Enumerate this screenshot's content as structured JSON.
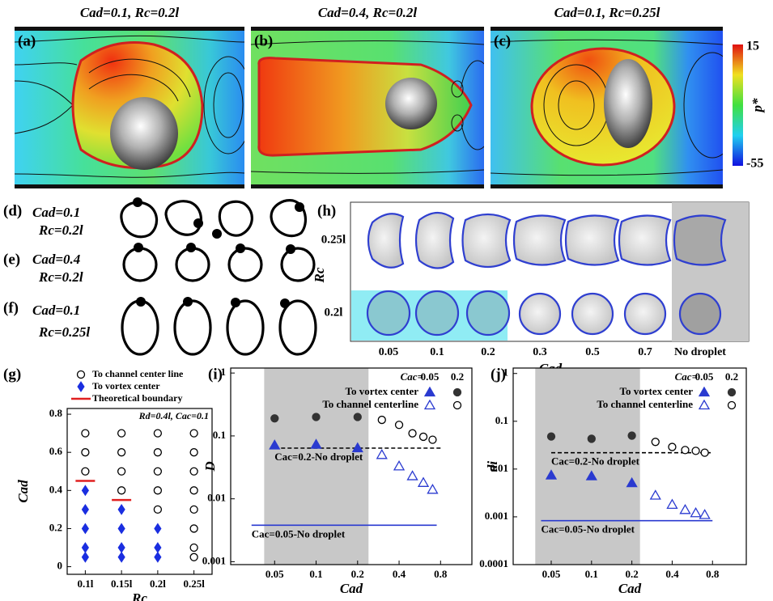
{
  "panels": {
    "a": {
      "tag": "(a)",
      "title": "Cad=0.1, Rc=0.2l"
    },
    "b": {
      "tag": "(b)",
      "title": "Cad=0.4, Rc=0.2l"
    },
    "c": {
      "tag": "(c)",
      "title": "Cad=0.1, Rc=0.25l"
    },
    "colorbar": {
      "max": 15,
      "min": -55,
      "label": "p*"
    },
    "d": {
      "tag": "(d)",
      "line1": "Cad=0.1",
      "line2": "Rc=0.2l"
    },
    "e": {
      "tag": "(e)",
      "line1": "Cad=0.4",
      "line2": "Rc=0.2l"
    },
    "f": {
      "tag": "(f)",
      "line1": "Cad=0.1",
      "line2": "Rc=0.25l"
    },
    "h": {
      "tag": "(h)",
      "y_label": "Rc",
      "rows": [
        "0.25l",
        "0.2l"
      ],
      "columns": [
        "0.05",
        "0.1",
        "0.2",
        "0.3",
        "0.5",
        "0.7",
        "No droplet"
      ],
      "x_label": "Cad"
    }
  },
  "chart_data": [
    {
      "type": "scatter",
      "panel_label": "(g)",
      "x_label": "Rc",
      "y_label": "Cad",
      "annotation": "Rd=0.4l, Cac=0.1",
      "categories": [
        "0.1l",
        "0.15l",
        "0.2l",
        "0.25l"
      ],
      "ylim": [
        -0.04,
        0.83
      ],
      "yticks": [
        0,
        0.2,
        0.4,
        0.6,
        0.8
      ],
      "legend": "top",
      "series": [
        {
          "name": "To channel center line",
          "marker": "circle",
          "filled": false,
          "color": "#000000",
          "x": [
            "0.1l",
            "0.1l",
            "0.1l",
            "0.15l",
            "0.15l",
            "0.15l",
            "0.15l",
            "0.2l",
            "0.2l",
            "0.2l",
            "0.2l",
            "0.2l",
            "0.25l",
            "0.25l",
            "0.25l",
            "0.25l",
            "0.25l",
            "0.25l",
            "0.25l",
            "0.25l"
          ],
          "values": [
            0.5,
            0.6,
            0.7,
            0.4,
            0.5,
            0.6,
            0.7,
            0.3,
            0.4,
            0.5,
            0.6,
            0.7,
            0.05,
            0.1,
            0.2,
            0.3,
            0.4,
            0.5,
            0.6,
            0.7
          ]
        },
        {
          "name": "To vortex center",
          "marker": "diamond",
          "filled": true,
          "color": "#1a2ee0",
          "x": [
            "0.1l",
            "0.1l",
            "0.1l",
            "0.1l",
            "0.1l",
            "0.15l",
            "0.15l",
            "0.15l",
            "0.15l",
            "0.2l",
            "0.2l",
            "0.2l"
          ],
          "values": [
            0.05,
            0.1,
            0.2,
            0.3,
            0.4,
            0.05,
            0.1,
            0.2,
            0.3,
            0.05,
            0.1,
            0.2
          ]
        },
        {
          "name": "Theoretical boundary",
          "marker": "hline",
          "filled": true,
          "color": "#e02020",
          "x": [
            "0.1l",
            "0.15l"
          ],
          "values": [
            0.45,
            0.35
          ]
        }
      ]
    },
    {
      "type": "scatter",
      "panel_label": "(i)",
      "x_label": "Cad",
      "y_label": "D",
      "xlog": true,
      "ylog": true,
      "xlim": [
        0.024,
        1.35
      ],
      "xticks": [
        0.05,
        0.1,
        0.2,
        0.4,
        0.8
      ],
      "ylim": [
        0.0009,
        1.2
      ],
      "yticks": [
        0.001,
        0.01,
        0.1,
        1
      ],
      "shaded_x": [
        0.042,
        0.24
      ],
      "legend": "top-right",
      "legend_title": "Cac=",
      "series": [
        {
          "name": "To vortex center",
          "cac": "0.05",
          "marker": "triangle",
          "filled": true,
          "color": "#2a3ad0",
          "x": [
            0.05,
            0.1,
            0.2
          ],
          "values": [
            0.071,
            0.073,
            0.064
          ]
        },
        {
          "name": "To vortex center",
          "cac": "0.2",
          "marker": "circle",
          "filled": true,
          "color": "#333333",
          "x": [
            0.05,
            0.1,
            0.2
          ],
          "values": [
            0.19,
            0.2,
            0.2
          ]
        },
        {
          "name": "To channel centerline",
          "cac": "0.05",
          "marker": "triangle",
          "filled": false,
          "color": "#2a3ad0",
          "x": [
            0.3,
            0.4,
            0.5,
            0.6,
            0.7
          ],
          "values": [
            0.05,
            0.033,
            0.023,
            0.018,
            0.014
          ]
        },
        {
          "name": "To channel centerline",
          "cac": "0.2",
          "marker": "circle",
          "filled": false,
          "color": "#000000",
          "x": [
            0.3,
            0.4,
            0.5,
            0.6,
            0.7
          ],
          "values": [
            0.18,
            0.15,
            0.11,
            0.097,
            0.087
          ]
        }
      ],
      "lines": [
        {
          "label": "Cac=0.2-No droplet",
          "value": 0.064,
          "x": [
            0.05,
            0.8
          ],
          "style": "dashed",
          "color": "#000000"
        },
        {
          "label": "Cac=0.05-No droplet",
          "value": 0.0038,
          "x": [
            0.034,
            0.75
          ],
          "style": "solid",
          "color": "#2a3ad0"
        }
      ]
    },
    {
      "type": "scatter",
      "panel_label": "(j)",
      "x_label": "Cad",
      "y_label": "di",
      "xlog": true,
      "ylog": true,
      "xlim": [
        0.026,
        1.43
      ],
      "xticks": [
        0.05,
        0.1,
        0.2,
        0.4,
        0.8
      ],
      "ylim": [
        0.0001,
        1.3
      ],
      "yticks": [
        0.0001,
        0.001,
        0.01,
        0.1,
        1
      ],
      "shaded_x": [
        0.038,
        0.23
      ],
      "legend": "top-right",
      "legend_title": "Cac=",
      "series": [
        {
          "name": "To vortex center",
          "cac": "0.05",
          "marker": "triangle",
          "filled": true,
          "color": "#2a3ad0",
          "x": [
            0.05,
            0.1,
            0.2
          ],
          "values": [
            0.0074,
            0.0071,
            0.0051
          ]
        },
        {
          "name": "To vortex center",
          "cac": "0.2",
          "marker": "circle",
          "filled": true,
          "color": "#333333",
          "x": [
            0.05,
            0.1,
            0.2
          ],
          "values": [
            0.048,
            0.043,
            0.05
          ]
        },
        {
          "name": "To channel centerline",
          "cac": "0.05",
          "marker": "triangle",
          "filled": false,
          "color": "#2a3ad0",
          "x": [
            0.3,
            0.4,
            0.5,
            0.6,
            0.7
          ],
          "values": [
            0.0028,
            0.0018,
            0.0014,
            0.0012,
            0.0011
          ]
        },
        {
          "name": "To channel centerline",
          "cac": "0.2",
          "marker": "circle",
          "filled": false,
          "color": "#000000",
          "x": [
            0.3,
            0.4,
            0.5,
            0.6,
            0.7
          ],
          "values": [
            0.037,
            0.029,
            0.025,
            0.024,
            0.022
          ]
        }
      ],
      "lines": [
        {
          "label": "Cac=0.2-No droplet",
          "value": 0.022,
          "x": [
            0.05,
            0.8
          ],
          "style": "dashed",
          "color": "#000000"
        },
        {
          "label": "Cac=0.05-No droplet",
          "value": 0.00083,
          "x": [
            0.042,
            0.8
          ],
          "style": "solid",
          "color": "#2a3ad0"
        }
      ]
    }
  ]
}
